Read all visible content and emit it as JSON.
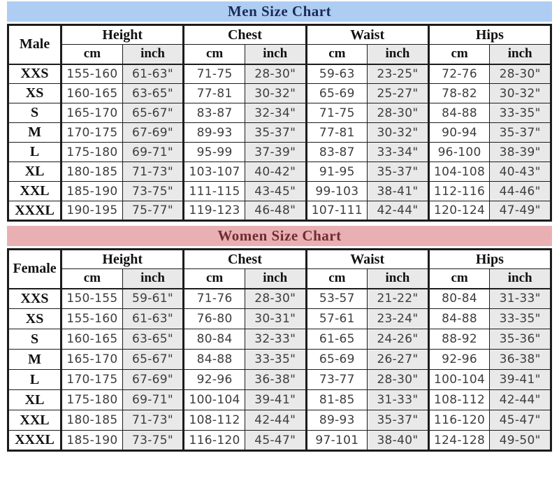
{
  "colors": {
    "men_band_background": "#aecdf3",
    "men_title_text": "#1a2b57",
    "women_band_background": "#e9b0b3",
    "women_title_text": "#6f2c31",
    "inch_column_background": "#e9e9e9",
    "border": "#1c1c1c",
    "data_text": "#3d3d3d"
  },
  "men_chart": {
    "title": "Men Size Chart",
    "label_header": "Male",
    "groups": {
      "height": "Height",
      "chest": "Chest",
      "waist": "Waist",
      "hips": "Hips"
    },
    "units": {
      "cm": "cm",
      "inch": "inch"
    },
    "rows": [
      {
        "size": "XXS",
        "height_cm": "155-160",
        "height_in": "61-63\"",
        "chest_cm": "71-75",
        "chest_in": "28-30\"",
        "waist_cm": "59-63",
        "waist_in": "23-25\"",
        "hips_cm": "72-76",
        "hips_in": "28-30\""
      },
      {
        "size": "XS",
        "height_cm": "160-165",
        "height_in": "63-65\"",
        "chest_cm": "77-81",
        "chest_in": "30-32\"",
        "waist_cm": "65-69",
        "waist_in": "25-27\"",
        "hips_cm": "78-82",
        "hips_in": "30-32\""
      },
      {
        "size": "S",
        "height_cm": "165-170",
        "height_in": "65-67\"",
        "chest_cm": "83-87",
        "chest_in": "32-34\"",
        "waist_cm": "71-75",
        "waist_in": "28-30\"",
        "hips_cm": "84-88",
        "hips_in": "33-35\""
      },
      {
        "size": "M",
        "height_cm": "170-175",
        "height_in": "67-69\"",
        "chest_cm": "89-93",
        "chest_in": "35-37\"",
        "waist_cm": "77-81",
        "waist_in": "30-32\"",
        "hips_cm": "90-94",
        "hips_in": "35-37\""
      },
      {
        "size": "L",
        "height_cm": "175-180",
        "height_in": "69-71\"",
        "chest_cm": "95-99",
        "chest_in": "37-39\"",
        "waist_cm": "83-87",
        "waist_in": "33-34\"",
        "hips_cm": "96-100",
        "hips_in": "38-39\""
      },
      {
        "size": "XL",
        "height_cm": "180-185",
        "height_in": "71-73\"",
        "chest_cm": "103-107",
        "chest_in": "40-42\"",
        "waist_cm": "91-95",
        "waist_in": "35-37\"",
        "hips_cm": "104-108",
        "hips_in": "40-43\""
      },
      {
        "size": "XXL",
        "height_cm": "185-190",
        "height_in": "73-75\"",
        "chest_cm": "111-115",
        "chest_in": "43-45\"",
        "waist_cm": "99-103",
        "waist_in": "38-41\"",
        "hips_cm": "112-116",
        "hips_in": "44-46\""
      },
      {
        "size": "XXXL",
        "height_cm": "190-195",
        "height_in": "75-77\"",
        "chest_cm": "119-123",
        "chest_in": "46-48\"",
        "waist_cm": "107-111",
        "waist_in": "42-44\"",
        "hips_cm": "120-124",
        "hips_in": "47-49\""
      }
    ]
  },
  "women_chart": {
    "title": "Women Size Chart",
    "label_header": "Female",
    "groups": {
      "height": "Height",
      "chest": "Chest",
      "waist": "Waist",
      "hips": "Hips"
    },
    "units": {
      "cm": "cm",
      "inch": "inch"
    },
    "rows": [
      {
        "size": "XXS",
        "height_cm": "150-155",
        "height_in": "59-61\"",
        "chest_cm": "71-76",
        "chest_in": "28-30\"",
        "waist_cm": "53-57",
        "waist_in": "21-22\"",
        "hips_cm": "80-84",
        "hips_in": "31-33\""
      },
      {
        "size": "XS",
        "height_cm": "155-160",
        "height_in": "61-63\"",
        "chest_cm": "76-80",
        "chest_in": "30-31\"",
        "waist_cm": "57-61",
        "waist_in": "23-24\"",
        "hips_cm": "84-88",
        "hips_in": "33-35\""
      },
      {
        "size": "S",
        "height_cm": "160-165",
        "height_in": "63-65\"",
        "chest_cm": "80-84",
        "chest_in": "32-33\"",
        "waist_cm": "61-65",
        "waist_in": "24-26\"",
        "hips_cm": "88-92",
        "hips_in": "35-36\""
      },
      {
        "size": "M",
        "height_cm": "165-170",
        "height_in": "65-67\"",
        "chest_cm": "84-88",
        "chest_in": "33-35\"",
        "waist_cm": "65-69",
        "waist_in": "26-27\"",
        "hips_cm": "92-96",
        "hips_in": "36-38\""
      },
      {
        "size": "L",
        "height_cm": "170-175",
        "height_in": "67-69\"",
        "chest_cm": "92-96",
        "chest_in": "36-38\"",
        "waist_cm": "73-77",
        "waist_in": "28-30\"",
        "hips_cm": "100-104",
        "hips_in": "39-41\""
      },
      {
        "size": "XL",
        "height_cm": "175-180",
        "height_in": "69-71\"",
        "chest_cm": "100-104",
        "chest_in": "39-41\"",
        "waist_cm": "81-85",
        "waist_in": "31-33\"",
        "hips_cm": "108-112",
        "hips_in": "42-44\""
      },
      {
        "size": "XXL",
        "height_cm": "180-185",
        "height_in": "71-73\"",
        "chest_cm": "108-112",
        "chest_in": "42-44\"",
        "waist_cm": "89-93",
        "waist_in": "35-37\"",
        "hips_cm": "116-120",
        "hips_in": "45-47\""
      },
      {
        "size": "XXXL",
        "height_cm": "185-190",
        "height_in": "73-75\"",
        "chest_cm": "116-120",
        "chest_in": "45-47\"",
        "waist_cm": "97-101",
        "waist_in": "38-40\"",
        "hips_cm": "124-128",
        "hips_in": "49-50\""
      }
    ]
  }
}
